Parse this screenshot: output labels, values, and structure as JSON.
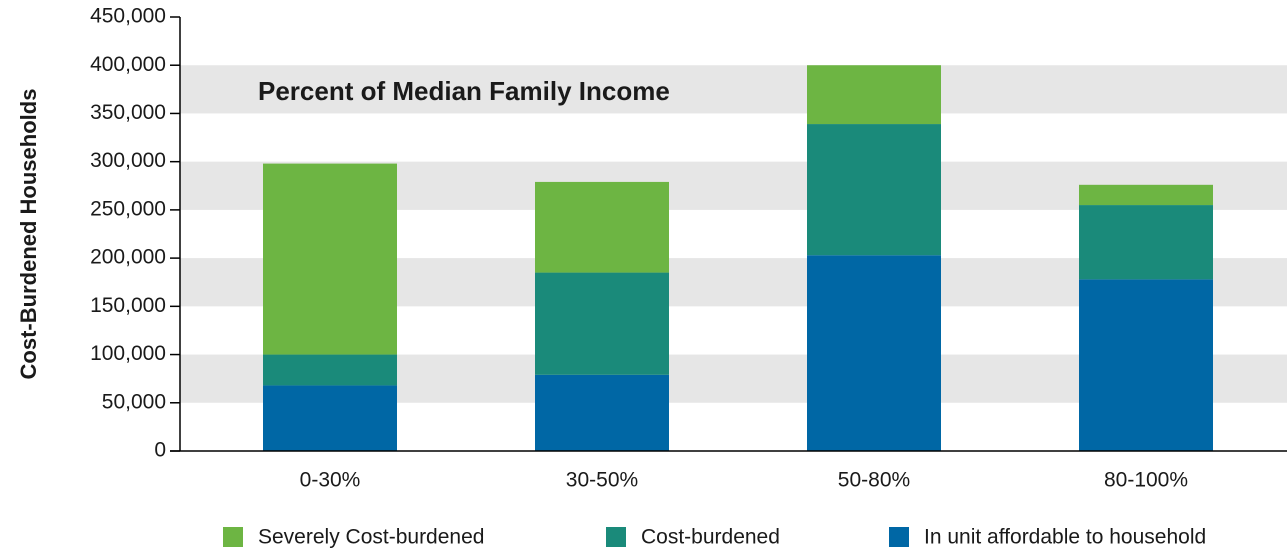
{
  "chart_data": {
    "type": "stacked_bar",
    "annotation": "Percent of Median Family Income",
    "ylabel": "Cost-Burdened Households",
    "categories": [
      "0-30%",
      "30-50%",
      "50-80%",
      "80-100%"
    ],
    "series": [
      {
        "name": "Severely Cost-burdened",
        "color": "#6db543",
        "values": [
          198000,
          94000,
          61000,
          21000
        ]
      },
      {
        "name": "Cost-burdened",
        "color": "#1a8a7a",
        "values": [
          32000,
          106000,
          136000,
          77000
        ]
      },
      {
        "name": "In unit affordable to household",
        "color": "#0067a5",
        "values": [
          68000,
          79000,
          203000,
          178000
        ]
      }
    ],
    "ylim": [
      0,
      450000
    ],
    "yticks": [
      0,
      {
        "value": 50000,
        "label": "50,000"
      },
      {
        "value": 100000,
        "label": "100,000"
      },
      {
        "value": 150000,
        "label": "150,000"
      },
      {
        "value": 200000,
        "label": "200,000"
      },
      {
        "value": 250000,
        "label": "250,000"
      },
      {
        "value": 300000,
        "label": "300,000"
      },
      {
        "value": 350000,
        "label": "350,000"
      },
      {
        "value": 400000,
        "label": "400,000"
      },
      {
        "value": 450000,
        "label": "450,000"
      }
    ],
    "grid": true,
    "legend": "bottom"
  }
}
